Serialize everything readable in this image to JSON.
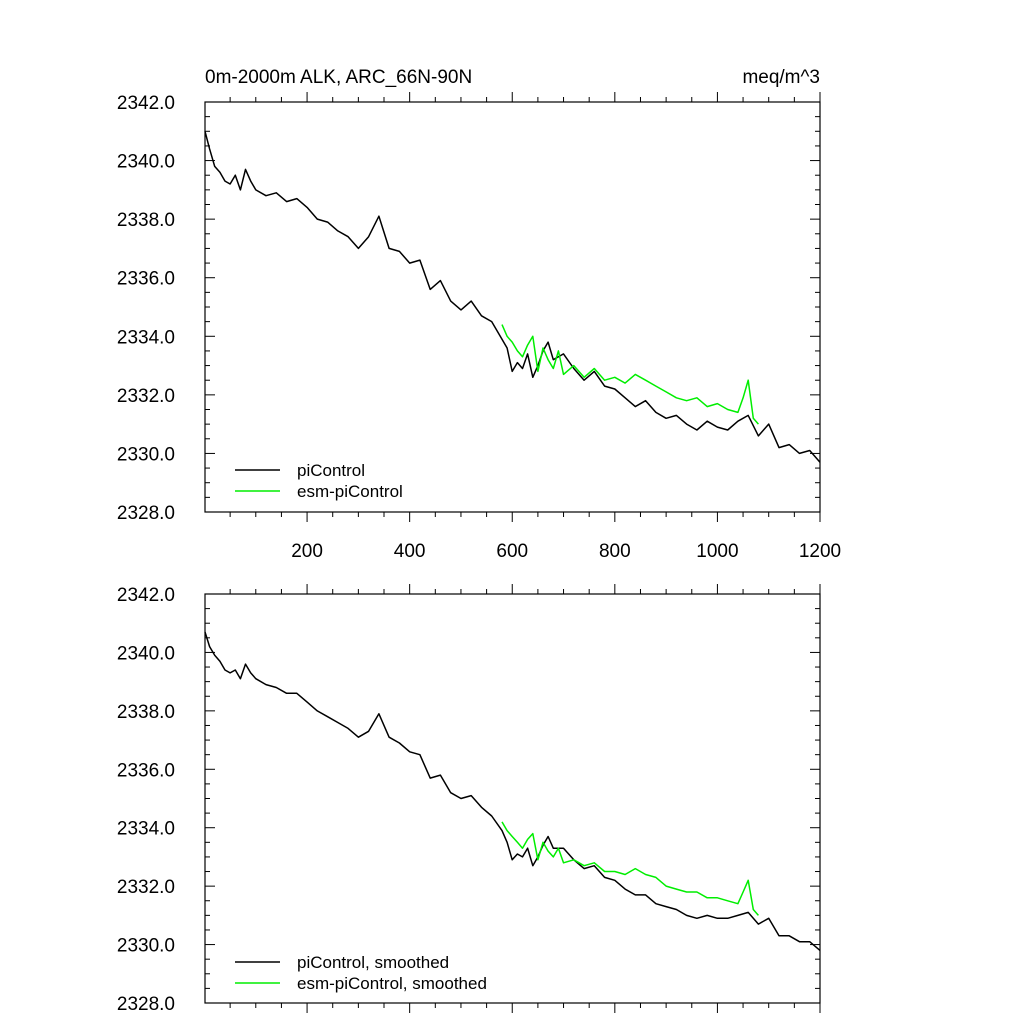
{
  "colors": {
    "black": "#000000",
    "green": "#00ee00"
  },
  "chart_data": [
    {
      "type": "line",
      "title": "0m-2000m ALK, ARC_66N-90N",
      "units": "meq/m^3",
      "xlim": [
        1,
        1200
      ],
      "ylim": [
        2328.0,
        2342.0
      ],
      "y_ticks": [
        "2328.0",
        "2330.0",
        "2332.0",
        "2334.0",
        "2336.0",
        "2338.0",
        "2340.0",
        "2342.0"
      ],
      "x_ticks": [
        "200",
        "400",
        "600",
        "800",
        "1000",
        "1200"
      ],
      "legend_position": "bottom-left",
      "series": [
        {
          "name": "piControl",
          "color": "#000000",
          "x": [
            1,
            10,
            20,
            30,
            40,
            50,
            60,
            70,
            80,
            90,
            100,
            120,
            140,
            160,
            180,
            200,
            220,
            240,
            260,
            280,
            300,
            320,
            340,
            360,
            380,
            400,
            420,
            440,
            460,
            480,
            500,
            520,
            540,
            560,
            580,
            590,
            600,
            610,
            620,
            630,
            640,
            650,
            660,
            670,
            680,
            700,
            720,
            740,
            760,
            780,
            800,
            820,
            840,
            860,
            880,
            900,
            920,
            940,
            960,
            980,
            1000,
            1020,
            1040,
            1060,
            1080,
            1100,
            1120,
            1140,
            1160,
            1180,
            1200
          ],
          "y": [
            2341.0,
            2340.4,
            2339.8,
            2339.6,
            2339.3,
            2339.2,
            2339.5,
            2339.0,
            2339.7,
            2339.3,
            2339.0,
            2338.8,
            2338.9,
            2338.6,
            2338.7,
            2338.4,
            2338.0,
            2337.9,
            2337.6,
            2337.4,
            2337.0,
            2337.4,
            2338.1,
            2337.0,
            2336.9,
            2336.5,
            2336.6,
            2335.6,
            2335.9,
            2335.2,
            2334.9,
            2335.2,
            2334.7,
            2334.5,
            2333.9,
            2333.6,
            2332.8,
            2333.1,
            2332.9,
            2333.4,
            2332.6,
            2333.0,
            2333.5,
            2333.8,
            2333.2,
            2333.4,
            2332.9,
            2332.5,
            2332.8,
            2332.3,
            2332.2,
            2331.9,
            2331.6,
            2331.8,
            2331.4,
            2331.2,
            2331.3,
            2331.0,
            2330.8,
            2331.1,
            2330.9,
            2330.8,
            2331.1,
            2331.3,
            2330.6,
            2331.0,
            2330.2,
            2330.3,
            2330.0,
            2330.1,
            2329.7
          ]
        },
        {
          "name": "esm-piControl",
          "color": "#00ee00",
          "x": [
            580,
            590,
            600,
            610,
            620,
            630,
            640,
            650,
            660,
            670,
            680,
            690,
            700,
            720,
            740,
            760,
            780,
            800,
            820,
            840,
            860,
            880,
            900,
            920,
            940,
            960,
            980,
            1000,
            1020,
            1040,
            1050,
            1060,
            1070,
            1080
          ],
          "y": [
            2334.4,
            2334.0,
            2333.8,
            2333.5,
            2333.3,
            2333.7,
            2334.0,
            2332.8,
            2333.6,
            2333.2,
            2332.9,
            2333.5,
            2332.7,
            2333.0,
            2332.6,
            2332.9,
            2332.5,
            2332.6,
            2332.4,
            2332.7,
            2332.5,
            2332.3,
            2332.1,
            2331.9,
            2331.8,
            2331.9,
            2331.6,
            2331.7,
            2331.5,
            2331.4,
            2331.9,
            2332.5,
            2331.2,
            2331.0
          ]
        }
      ]
    },
    {
      "type": "line",
      "xlim": [
        1,
        1200
      ],
      "ylim": [
        2328.0,
        2342.0
      ],
      "y_ticks": [
        "2328.0",
        "2330.0",
        "2332.0",
        "2334.0",
        "2336.0",
        "2338.0",
        "2340.0",
        "2342.0"
      ],
      "legend_position": "bottom-left",
      "series": [
        {
          "name": "piControl, smoothed",
          "color": "#000000",
          "x": [
            1,
            10,
            20,
            30,
            40,
            50,
            60,
            70,
            80,
            90,
            100,
            120,
            140,
            160,
            180,
            200,
            220,
            240,
            260,
            280,
            300,
            320,
            340,
            360,
            380,
            400,
            420,
            440,
            460,
            480,
            500,
            520,
            540,
            560,
            580,
            590,
            600,
            610,
            620,
            630,
            640,
            650,
            660,
            670,
            680,
            700,
            720,
            740,
            760,
            780,
            800,
            820,
            840,
            860,
            880,
            900,
            920,
            940,
            960,
            980,
            1000,
            1020,
            1040,
            1060,
            1080,
            1100,
            1120,
            1140,
            1160,
            1180,
            1200
          ],
          "y": [
            2340.7,
            2340.2,
            2339.9,
            2339.7,
            2339.4,
            2339.3,
            2339.4,
            2339.1,
            2339.6,
            2339.3,
            2339.1,
            2338.9,
            2338.8,
            2338.6,
            2338.6,
            2338.3,
            2338.0,
            2337.8,
            2337.6,
            2337.4,
            2337.1,
            2337.3,
            2337.9,
            2337.1,
            2336.9,
            2336.6,
            2336.5,
            2335.7,
            2335.8,
            2335.2,
            2335.0,
            2335.1,
            2334.7,
            2334.4,
            2333.9,
            2333.5,
            2332.9,
            2333.1,
            2333.0,
            2333.3,
            2332.7,
            2333.0,
            2333.4,
            2333.7,
            2333.3,
            2333.3,
            2332.9,
            2332.6,
            2332.7,
            2332.3,
            2332.2,
            2331.9,
            2331.7,
            2331.7,
            2331.4,
            2331.3,
            2331.2,
            2331.0,
            2330.9,
            2331.0,
            2330.9,
            2330.9,
            2331.0,
            2331.1,
            2330.7,
            2330.9,
            2330.3,
            2330.3,
            2330.1,
            2330.1,
            2329.8
          ]
        },
        {
          "name": "esm-piControl, smoothed",
          "color": "#00ee00",
          "x": [
            580,
            590,
            600,
            610,
            620,
            630,
            640,
            650,
            660,
            670,
            680,
            690,
            700,
            720,
            740,
            760,
            780,
            800,
            820,
            840,
            860,
            880,
            900,
            920,
            940,
            960,
            980,
            1000,
            1020,
            1040,
            1050,
            1060,
            1070,
            1080
          ],
          "y": [
            2334.2,
            2333.9,
            2333.7,
            2333.5,
            2333.3,
            2333.6,
            2333.8,
            2332.9,
            2333.5,
            2333.2,
            2333.0,
            2333.3,
            2332.8,
            2332.9,
            2332.7,
            2332.8,
            2332.5,
            2332.5,
            2332.4,
            2332.6,
            2332.4,
            2332.3,
            2332.0,
            2331.9,
            2331.8,
            2331.8,
            2331.6,
            2331.6,
            2331.5,
            2331.4,
            2331.8,
            2332.2,
            2331.2,
            2331.0
          ]
        }
      ]
    }
  ]
}
